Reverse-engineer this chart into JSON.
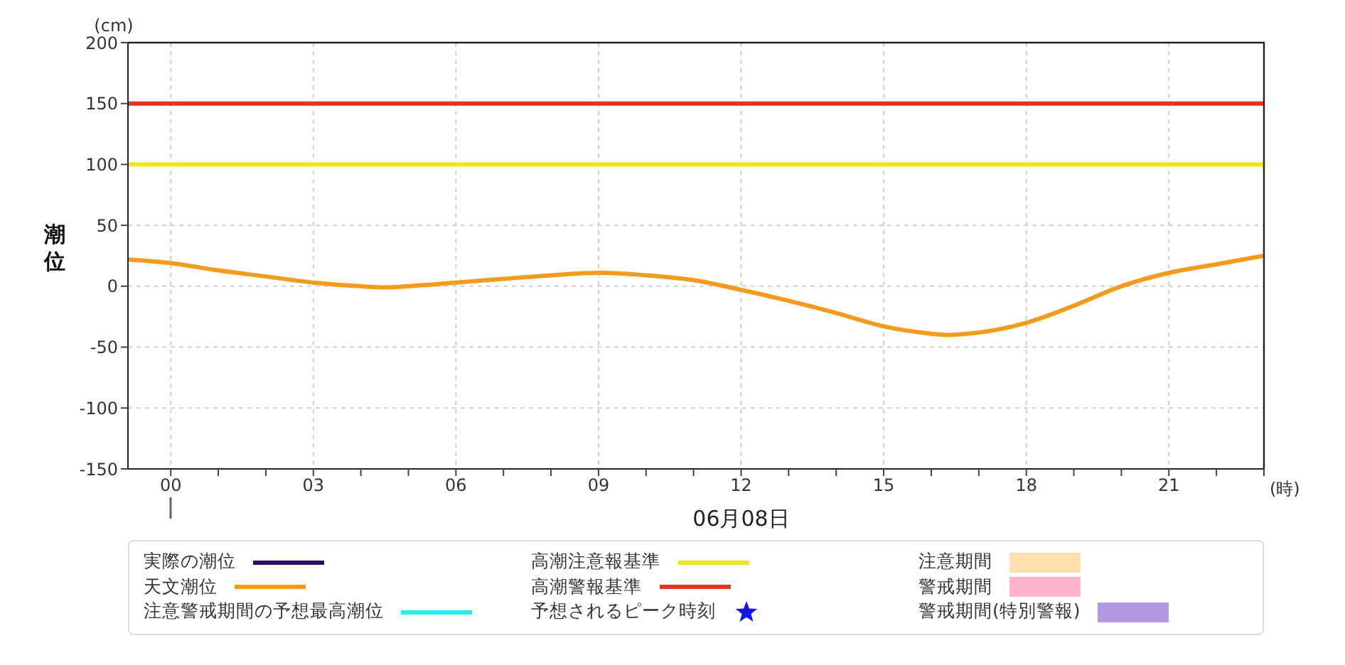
{
  "chart_data": {
    "type": "line",
    "ylabel": "潮位",
    "xlabel": "06月08日",
    "annotations": [
      "(cm)",
      "(時)"
    ],
    "x": [
      -0.9,
      0,
      1,
      2,
      3,
      4,
      4.5,
      5,
      6,
      7,
      8,
      9,
      10,
      11,
      12,
      13,
      14,
      15,
      16,
      16.3,
      17,
      18,
      19,
      20,
      21,
      22,
      23
    ],
    "series": [
      {
        "name": "実際の潮位",
        "color": "#2b0f6b",
        "values": [
          null,
          null,
          null,
          null,
          null,
          null,
          null,
          null,
          null,
          null,
          null,
          null,
          null,
          null,
          null,
          null,
          null,
          null,
          null,
          null,
          null,
          null,
          null,
          null,
          null,
          null,
          null
        ]
      },
      {
        "name": "天文潮位",
        "color": "#f39b1c",
        "values": [
          22,
          19,
          13,
          8,
          3,
          0,
          -1,
          0,
          3,
          6,
          9,
          11,
          9,
          5,
          -3,
          -12,
          -22,
          -33,
          -39,
          -40,
          -38,
          -30,
          -16,
          0,
          11,
          18,
          25
        ]
      },
      {
        "name": "注意警戒期間の予想最高潮位",
        "color": "#22eef0",
        "values": [
          null,
          null,
          null,
          null,
          null,
          null,
          null,
          null,
          null,
          null,
          null,
          null,
          null,
          null,
          null,
          null,
          null,
          null,
          null,
          null,
          null,
          null,
          null,
          null,
          null,
          null,
          null
        ]
      },
      {
        "name": "予想されるピーク時刻",
        "type": "scatter",
        "marker": "star",
        "color": "#1414e6",
        "values": [
          null,
          null,
          null,
          null,
          null,
          null,
          null,
          null,
          null,
          null,
          null,
          null,
          null,
          null,
          null,
          null,
          null,
          null,
          null,
          null,
          null,
          null,
          null,
          null,
          null,
          null,
          null
        ]
      },
      {
        "name": "注意期間",
        "type": "area",
        "color": "#ffdfb0",
        "values": [
          null,
          null,
          null,
          null,
          null,
          null,
          null,
          null,
          null,
          null,
          null,
          null,
          null,
          null,
          null,
          null,
          null,
          null,
          null,
          null,
          null,
          null,
          null,
          null,
          null,
          null,
          null
        ]
      },
      {
        "name": "警戒期間",
        "type": "area",
        "color": "#ffb3cb",
        "values": [
          null,
          null,
          null,
          null,
          null,
          null,
          null,
          null,
          null,
          null,
          null,
          null,
          null,
          null,
          null,
          null,
          null,
          null,
          null,
          null,
          null,
          null,
          null,
          null,
          null,
          null,
          null
        ]
      },
      {
        "name": "警戒期間(特別警報)",
        "type": "area",
        "color": "#b49ae0",
        "values": [
          null,
          null,
          null,
          null,
          null,
          null,
          null,
          null,
          null,
          null,
          null,
          null,
          null,
          null,
          null,
          null,
          null,
          null,
          null,
          null,
          null,
          null,
          null,
          null,
          null,
          null,
          null
        ]
      }
    ],
    "ref_lines": [
      {
        "axis": "y",
        "value": 100,
        "label": "高潮注意報基準",
        "color": "#efe41f"
      },
      {
        "axis": "y",
        "value": 150,
        "label": "高潮警報基準",
        "color": "#e83323"
      }
    ],
    "xlim": [
      -0.9,
      23
    ],
    "xticks": [
      {
        "value": 0,
        "label": "00"
      },
      {
        "value": 1,
        "label": null
      },
      {
        "value": 2,
        "label": null
      },
      {
        "value": 3,
        "label": "03"
      },
      {
        "value": 4,
        "label": null
      },
      {
        "value": 5,
        "label": null
      },
      {
        "value": 6,
        "label": "06"
      },
      {
        "value": 7,
        "label": null
      },
      {
        "value": 8,
        "label": null
      },
      {
        "value": 9,
        "label": "09"
      },
      {
        "value": 10,
        "label": null
      },
      {
        "value": 11,
        "label": null
      },
      {
        "value": 12,
        "label": "12"
      },
      {
        "value": 13,
        "label": null
      },
      {
        "value": 14,
        "label": null
      },
      {
        "value": 15,
        "label": "15"
      },
      {
        "value": 16,
        "label": null
      },
      {
        "value": 17,
        "label": null
      },
      {
        "value": 18,
        "label": "18"
      },
      {
        "value": 19,
        "label": null
      },
      {
        "value": 20,
        "label": null
      },
      {
        "value": 21,
        "label": "21"
      },
      {
        "value": 22,
        "label": null
      },
      {
        "value": 23,
        "label": null
      }
    ],
    "ylim": [
      -150,
      200
    ],
    "yticks": [
      -150,
      -100,
      -50,
      0,
      50,
      100,
      150,
      200
    ],
    "grid": true,
    "legend": "bottom",
    "marker": "none",
    "line_style": "solid"
  }
}
